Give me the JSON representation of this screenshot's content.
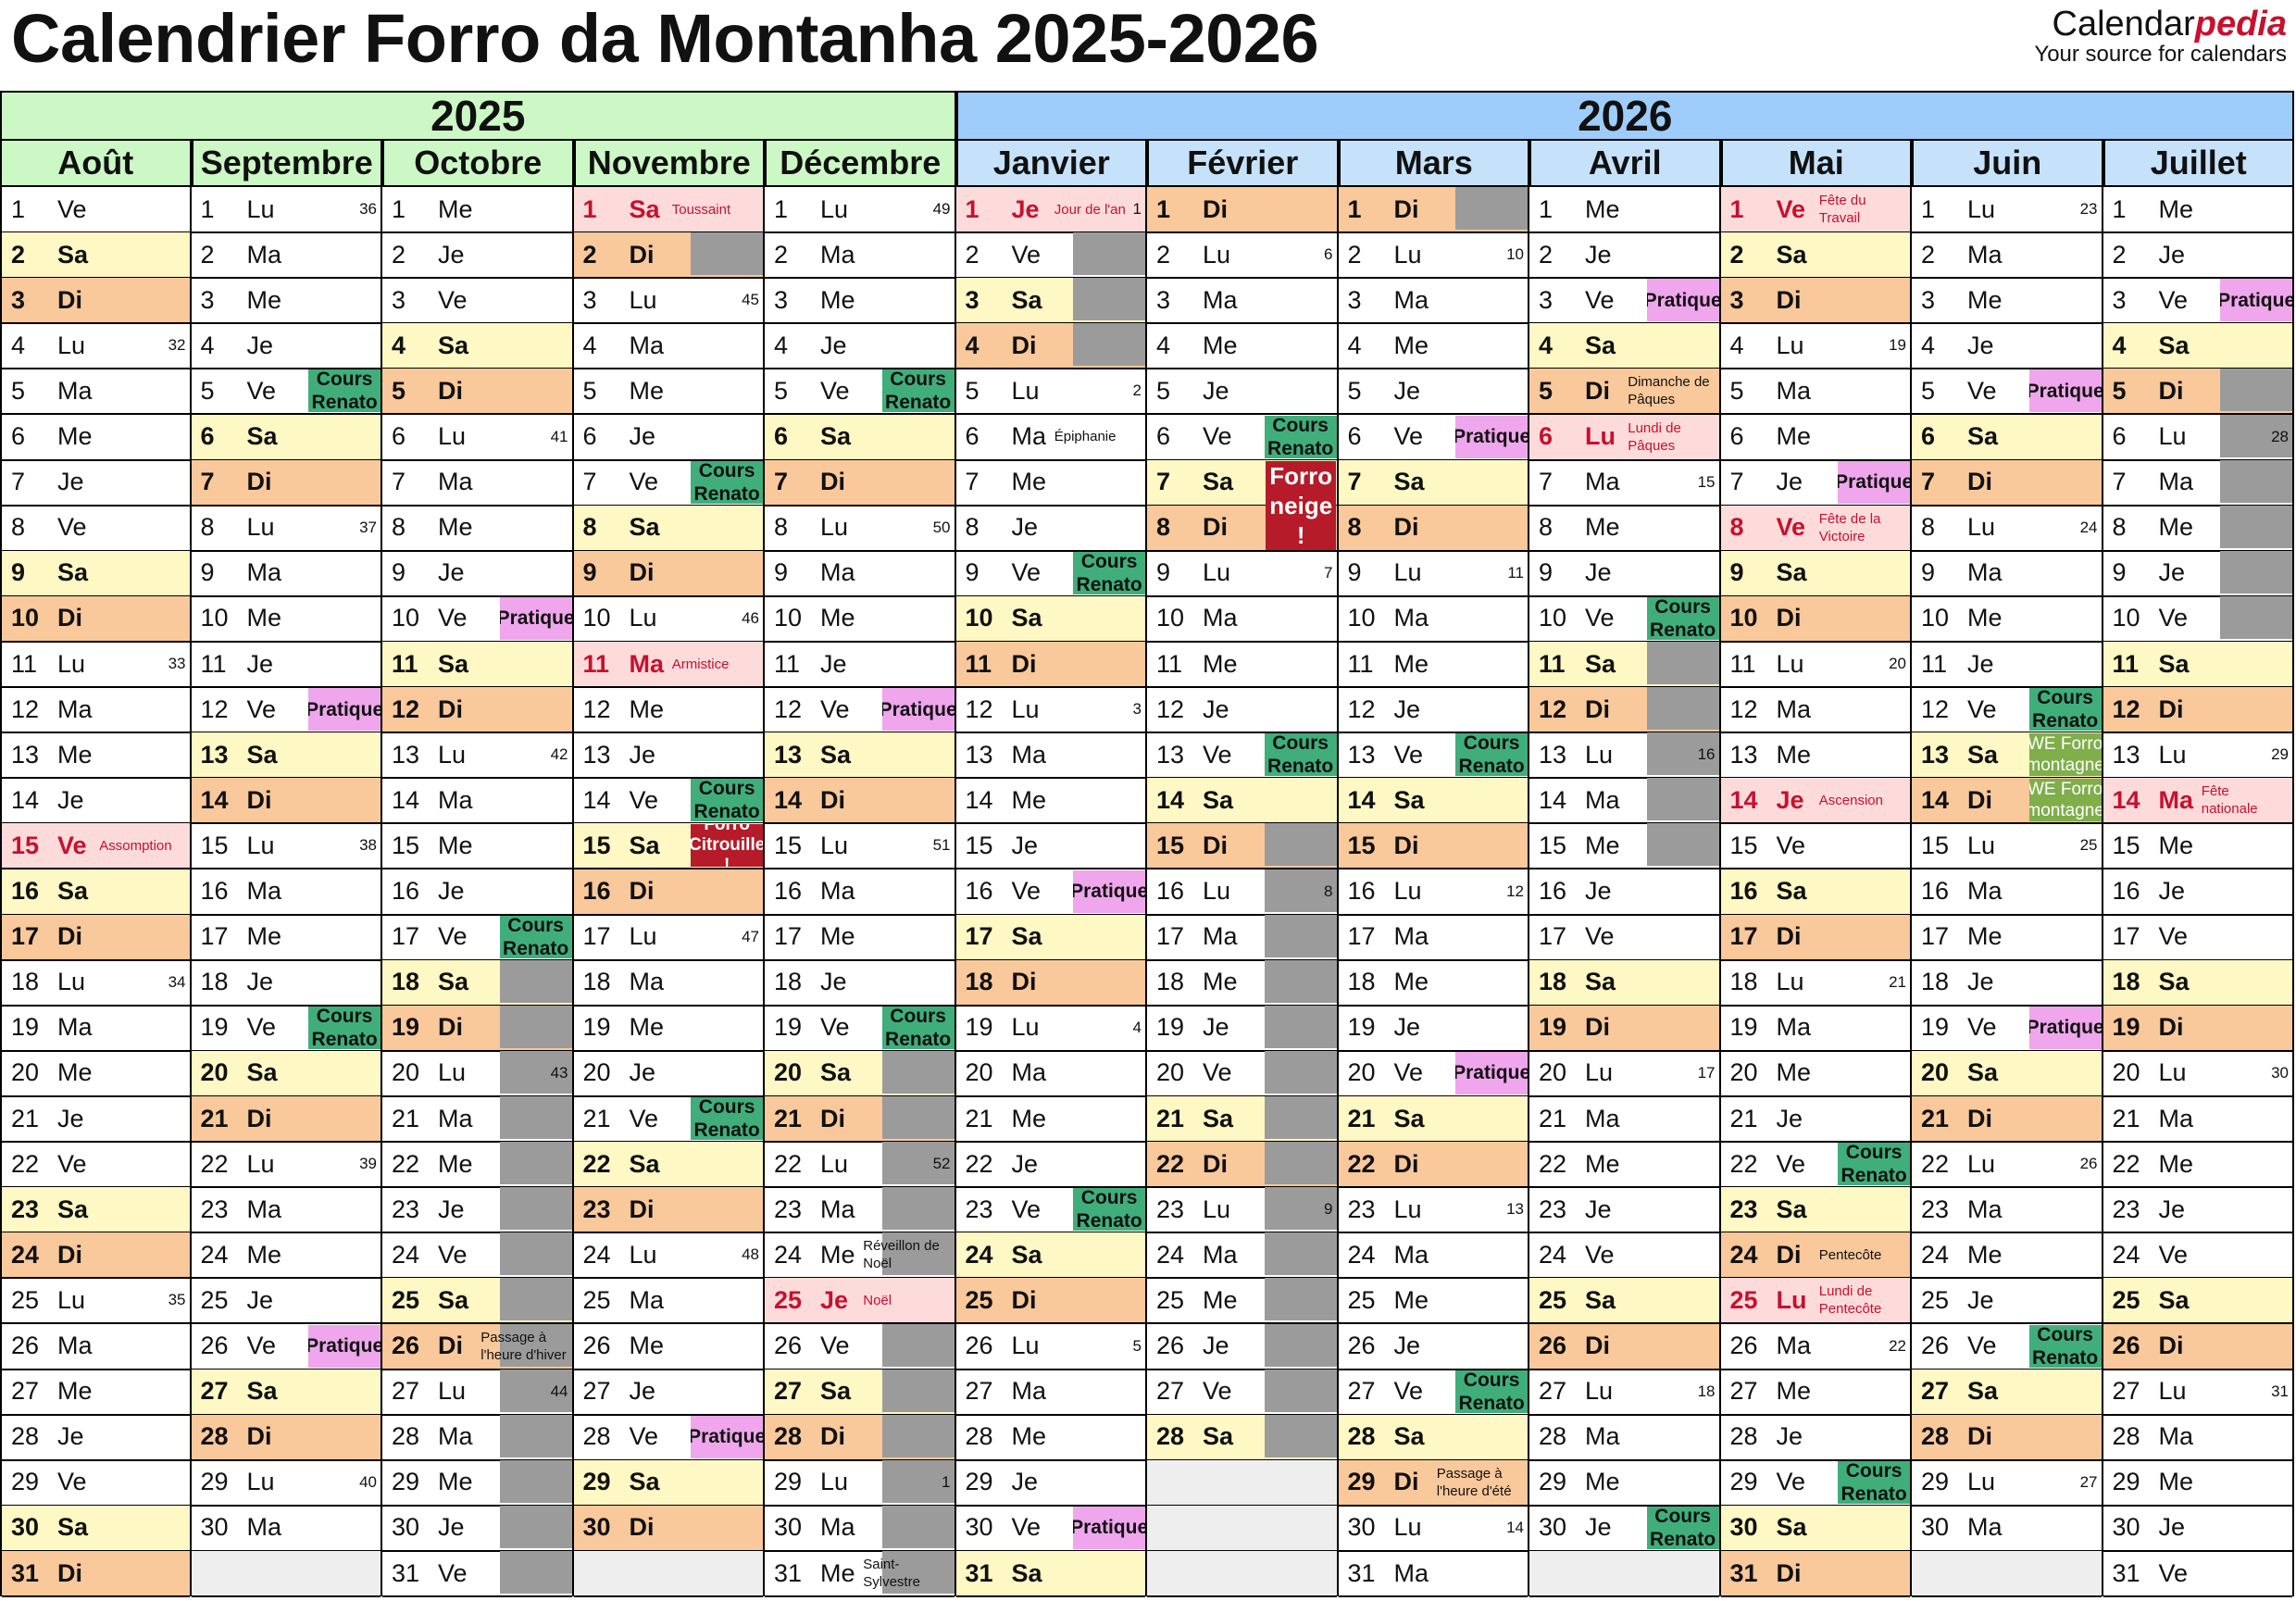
{
  "title": "Calendrier Forro da Montanha 2025-2026",
  "brand": {
    "name_a": "Calendar",
    "name_b": "pedia",
    "tagline": "Your source for calendars"
  },
  "years": [
    {
      "label": "2025",
      "color": "#ccf8c6",
      "months": 5
    },
    {
      "label": "2026",
      "color": "#9fcdfb",
      "months": 7
    }
  ],
  "colors": {
    "month_2025": "#ccf8c6",
    "month_2026": "#c6e2fb"
  },
  "months": [
    {
      "name": "Août",
      "year": 2025,
      "m": 7,
      "weeks": {
        "4": "32",
        "11": "33",
        "18": "34",
        "25": "35"
      },
      "holidays": {
        "15": "Assomption"
      },
      "events": {},
      "shade": []
    },
    {
      "name": "Septembre",
      "year": 2025,
      "m": 8,
      "weeks": {
        "1": "36",
        "8": "37",
        "15": "38",
        "22": "39",
        "29": "40"
      },
      "holidays": {},
      "events": {
        "5": "Cours Renato",
        "12": "Pratique",
        "19": "Cours Renato",
        "26": "Pratique"
      },
      "shade": []
    },
    {
      "name": "Octobre",
      "year": 2025,
      "m": 9,
      "weeks": {
        "6": "41",
        "13": "42",
        "20": "43",
        "27": "44"
      },
      "holidays": {},
      "events": {
        "10": "Pratique",
        "17": "Cours Renato"
      },
      "notes": {
        "26": "Passage à l'heure d'hiver"
      },
      "shade": [
        18,
        19,
        20,
        21,
        22,
        23,
        24,
        25,
        26,
        27,
        28,
        29,
        30,
        31
      ]
    },
    {
      "name": "Novembre",
      "year": 2025,
      "m": 10,
      "weeks": {
        "3": "45",
        "10": "46",
        "17": "47",
        "24": "48"
      },
      "holidays": {
        "1": "Toussaint",
        "11": "Armistice"
      },
      "events": {
        "7": "Cours Renato",
        "14": "Cours Renato",
        "15": "Forro Citrouille !",
        "21": "Cours Renato",
        "28": "Pratique"
      },
      "shade": [
        2
      ]
    },
    {
      "name": "Décembre",
      "year": 2025,
      "m": 11,
      "weeks": {
        "1": "49",
        "8": "50",
        "15": "51",
        "22": "52",
        "29": "1"
      },
      "holidays": {
        "25": "Noël"
      },
      "events": {
        "5": "Cours Renato",
        "12": "Pratique",
        "19": "Cours Renato"
      },
      "notes": {
        "24": "Réveillon de Noël",
        "31": "Saint-Sylvestre"
      },
      "shade": [
        20,
        21,
        22,
        23,
        24,
        25,
        26,
        27,
        28,
        29,
        30,
        31
      ]
    },
    {
      "name": "Janvier",
      "year": 2026,
      "m": 0,
      "weeks": {
        "1": "1",
        "5": "2",
        "12": "3",
        "19": "4",
        "26": "5"
      },
      "holidays": {
        "1": "Jour de l'an"
      },
      "events": {
        "9": "Cours Renato",
        "16": "Pratique",
        "23": "Cours Renato",
        "30": "Pratique"
      },
      "notes": {
        "6": "Épiphanie"
      },
      "shade": [
        2,
        3,
        4
      ]
    },
    {
      "name": "Février",
      "year": 2026,
      "m": 1,
      "weeks": {
        "2": "6",
        "9": "7",
        "16": "8",
        "23": "9"
      },
      "holidays": {},
      "events": {
        "6": "Cours Renato",
        "13": "Cours Renato"
      },
      "shade": [
        15,
        16,
        17,
        18,
        19,
        20,
        21,
        22,
        23,
        24,
        25,
        26,
        27,
        28
      ]
    },
    {
      "name": "Mars",
      "year": 2026,
      "m": 2,
      "weeks": {
        "2": "10",
        "9": "11",
        "16": "12",
        "23": "13",
        "30": "14"
      },
      "holidays": {},
      "events": {
        "6": "Pratique",
        "13": "Cours Renato",
        "20": "Pratique",
        "27": "Cours Renato"
      },
      "notes": {
        "29": "Passage à l'heure d'été"
      },
      "shade": [
        1
      ]
    },
    {
      "name": "Avril",
      "year": 2026,
      "m": 3,
      "weeks": {
        "7": "15",
        "13": "16",
        "20": "17",
        "27": "18"
      },
      "holidays": {
        "6": "Lundi de Pâques"
      },
      "events": {
        "3": "Pratique",
        "10": "Cours Renato",
        "30": "Cours Renato"
      },
      "notes": {
        "5": "Dimanche de Pâques"
      },
      "shade": [
        11,
        12,
        13,
        14,
        15
      ]
    },
    {
      "name": "Mai",
      "year": 2026,
      "m": 4,
      "weeks": {
        "4": "19",
        "11": "20",
        "18": "21",
        "26": "22"
      },
      "holidays": {
        "1": "Fête du Travail",
        "8": "Fête de la Victoire",
        "14": "Ascension",
        "25": "Lundi de Pentecôte"
      },
      "events": {
        "7": "Pratique",
        "22": "Cours Renato",
        "29": "Cours Renato"
      },
      "notes": {
        "24": "Pentecôte"
      },
      "shade": []
    },
    {
      "name": "Juin",
      "year": 2026,
      "m": 5,
      "weeks": {
        "1": "23",
        "8": "24",
        "15": "25",
        "22": "26",
        "29": "27"
      },
      "holidays": {},
      "events": {
        "5": "Pratique",
        "12": "Cours Renato",
        "13": "WE Forro montagne",
        "14": "WE Forro montagne",
        "19": "Pratique",
        "26": "Cours Renato"
      },
      "shade": []
    },
    {
      "name": "Juillet",
      "year": 2026,
      "m": 6,
      "weeks": {
        "6": "28",
        "13": "29",
        "20": "30",
        "27": "31"
      },
      "holidays": {
        "14": "Fête nationale"
      },
      "events": {
        "3": "Pratique"
      },
      "shade": [
        5,
        6,
        7,
        8,
        9,
        10
      ]
    }
  ],
  "big_events": [
    {
      "month": 6,
      "from": 7,
      "to": 8,
      "label": "Forro neige !"
    }
  ],
  "day_abbr": [
    "Di",
    "Lu",
    "Ma",
    "Me",
    "Je",
    "Ve",
    "Sa"
  ]
}
